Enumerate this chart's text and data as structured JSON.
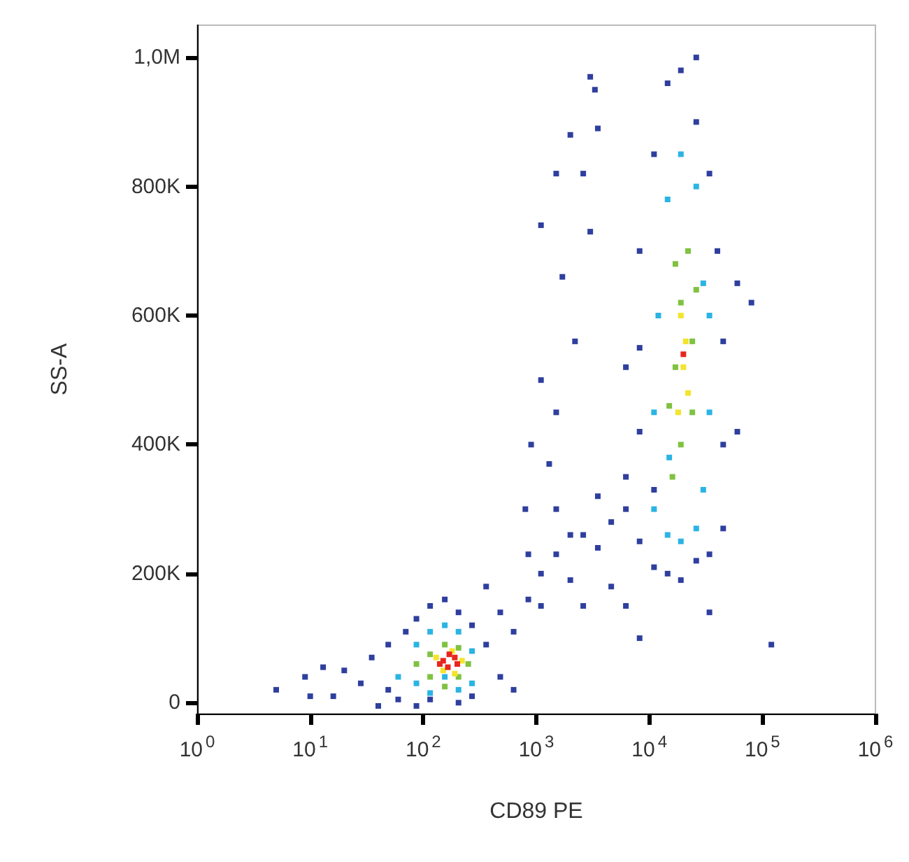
{
  "chart_data": {
    "type": "scatter",
    "xlabel": "CD89 PE",
    "ylabel": "SS-A",
    "log": "x",
    "marker": "square",
    "xlim": [
      1,
      1000000
    ],
    "xticks": [
      {
        "value": 1,
        "label": "10$^{0}$"
      },
      {
        "value": 10,
        "label": "10$^{1}$"
      },
      {
        "value": 100,
        "label": "10$^{2}$"
      },
      {
        "value": 1000,
        "label": "10$^{3}$"
      },
      {
        "value": 10000,
        "label": "10$^{4}$"
      },
      {
        "value": 100000,
        "label": "10$^{5}$"
      },
      {
        "value": 1000000,
        "label": "10$^{6}$"
      }
    ],
    "ylim": [
      -17000,
      1050000
    ],
    "yticks": [
      0,
      {
        "value": 200000,
        "label": "200K"
      },
      {
        "value": 400000,
        "label": "400K"
      },
      {
        "value": 600000,
        "label": "600K"
      },
      {
        "value": 800000,
        "label": "800K"
      },
      {
        "value": 1000000,
        "label": "1,0M"
      }
    ],
    "series": [
      {
        "color": "#2e3f9e",
        "x": [
          5,
          9,
          16,
          20,
          28,
          35,
          49,
          49,
          60,
          70,
          87,
          87,
          115,
          155,
          205,
          270,
          360,
          480,
          630,
          480,
          360,
          270,
          205,
          115,
          630,
          850,
          40,
          10,
          13,
          1100,
          1500,
          2000,
          2600,
          3500,
          4600,
          6200,
          3500,
          2000,
          850,
          1100,
          4600,
          6200,
          8200,
          2600,
          1500,
          8200,
          11000,
          14500,
          19000,
          26000,
          34000,
          45000,
          45000,
          45000,
          40000,
          34000,
          26000,
          19000,
          26000,
          14500,
          11000,
          8200,
          8200,
          8200,
          11000,
          60000,
          80000,
          60000,
          6200,
          6200,
          34000,
          120000,
          3000,
          3300,
          2000,
          2600,
          1500,
          3000,
          1100,
          1700,
          2200,
          1100,
          1500,
          900,
          1300,
          800,
          3500
        ],
        "values": [
          20000,
          40000,
          10000,
          50000,
          30000,
          70000,
          20000,
          90000,
          5000,
          110000,
          130000,
          -5000,
          150000,
          160000,
          140000,
          120000,
          90000,
          40000,
          20000,
          140000,
          180000,
          10000,
          0,
          5000,
          110000,
          160000,
          -5000,
          10000,
          55000,
          200000,
          230000,
          190000,
          260000,
          240000,
          280000,
          300000,
          320000,
          260000,
          230000,
          150000,
          180000,
          150000,
          100000,
          150000,
          300000,
          250000,
          210000,
          200000,
          190000,
          220000,
          230000,
          270000,
          400000,
          560000,
          700000,
          820000,
          900000,
          980000,
          1000000,
          960000,
          850000,
          700000,
          550000,
          420000,
          330000,
          650000,
          620000,
          420000,
          520000,
          350000,
          140000,
          90000,
          970000,
          950000,
          880000,
          820000,
          820000,
          730000,
          740000,
          660000,
          560000,
          500000,
          450000,
          400000,
          370000,
          300000,
          890000
        ]
      },
      {
        "color": "#2bb4e3",
        "x": [
          60,
          87,
          87,
          115,
          155,
          205,
          270,
          270,
          205,
          115,
          155,
          11000,
          14500,
          19000,
          26000,
          30000,
          34000,
          30000,
          26000,
          19000,
          14500,
          12000,
          11000,
          34000,
          15000
        ],
        "values": [
          40000,
          30000,
          90000,
          110000,
          120000,
          110000,
          80000,
          30000,
          20000,
          15000,
          40000,
          300000,
          260000,
          250000,
          270000,
          330000,
          450000,
          650000,
          800000,
          850000,
          780000,
          600000,
          450000,
          600000,
          380000
        ]
      },
      {
        "color": "#7fc241",
        "x": [
          87,
          115,
          115,
          155,
          205,
          205,
          155,
          250,
          16000,
          19000,
          24000,
          17000,
          24000,
          19000,
          22000,
          17000,
          26000,
          15000
        ],
        "values": [
          60000,
          75000,
          40000,
          90000,
          85000,
          40000,
          25000,
          60000,
          350000,
          400000,
          450000,
          520000,
          560000,
          620000,
          700000,
          680000,
          640000,
          460000
        ]
      },
      {
        "color": "#f3e42c",
        "x": [
          130,
          180,
          220,
          150,
          190,
          20000,
          19000,
          21000,
          22000,
          18000
        ],
        "values": [
          70000,
          80000,
          65000,
          50000,
          45000,
          520000,
          600000,
          560000,
          480000,
          450000
        ]
      },
      {
        "color": "#e8261e",
        "x": [
          150,
          170,
          190,
          165,
          200,
          20000,
          140
        ],
        "values": [
          65000,
          75000,
          70000,
          55000,
          60000,
          540000,
          60000
        ]
      }
    ]
  }
}
